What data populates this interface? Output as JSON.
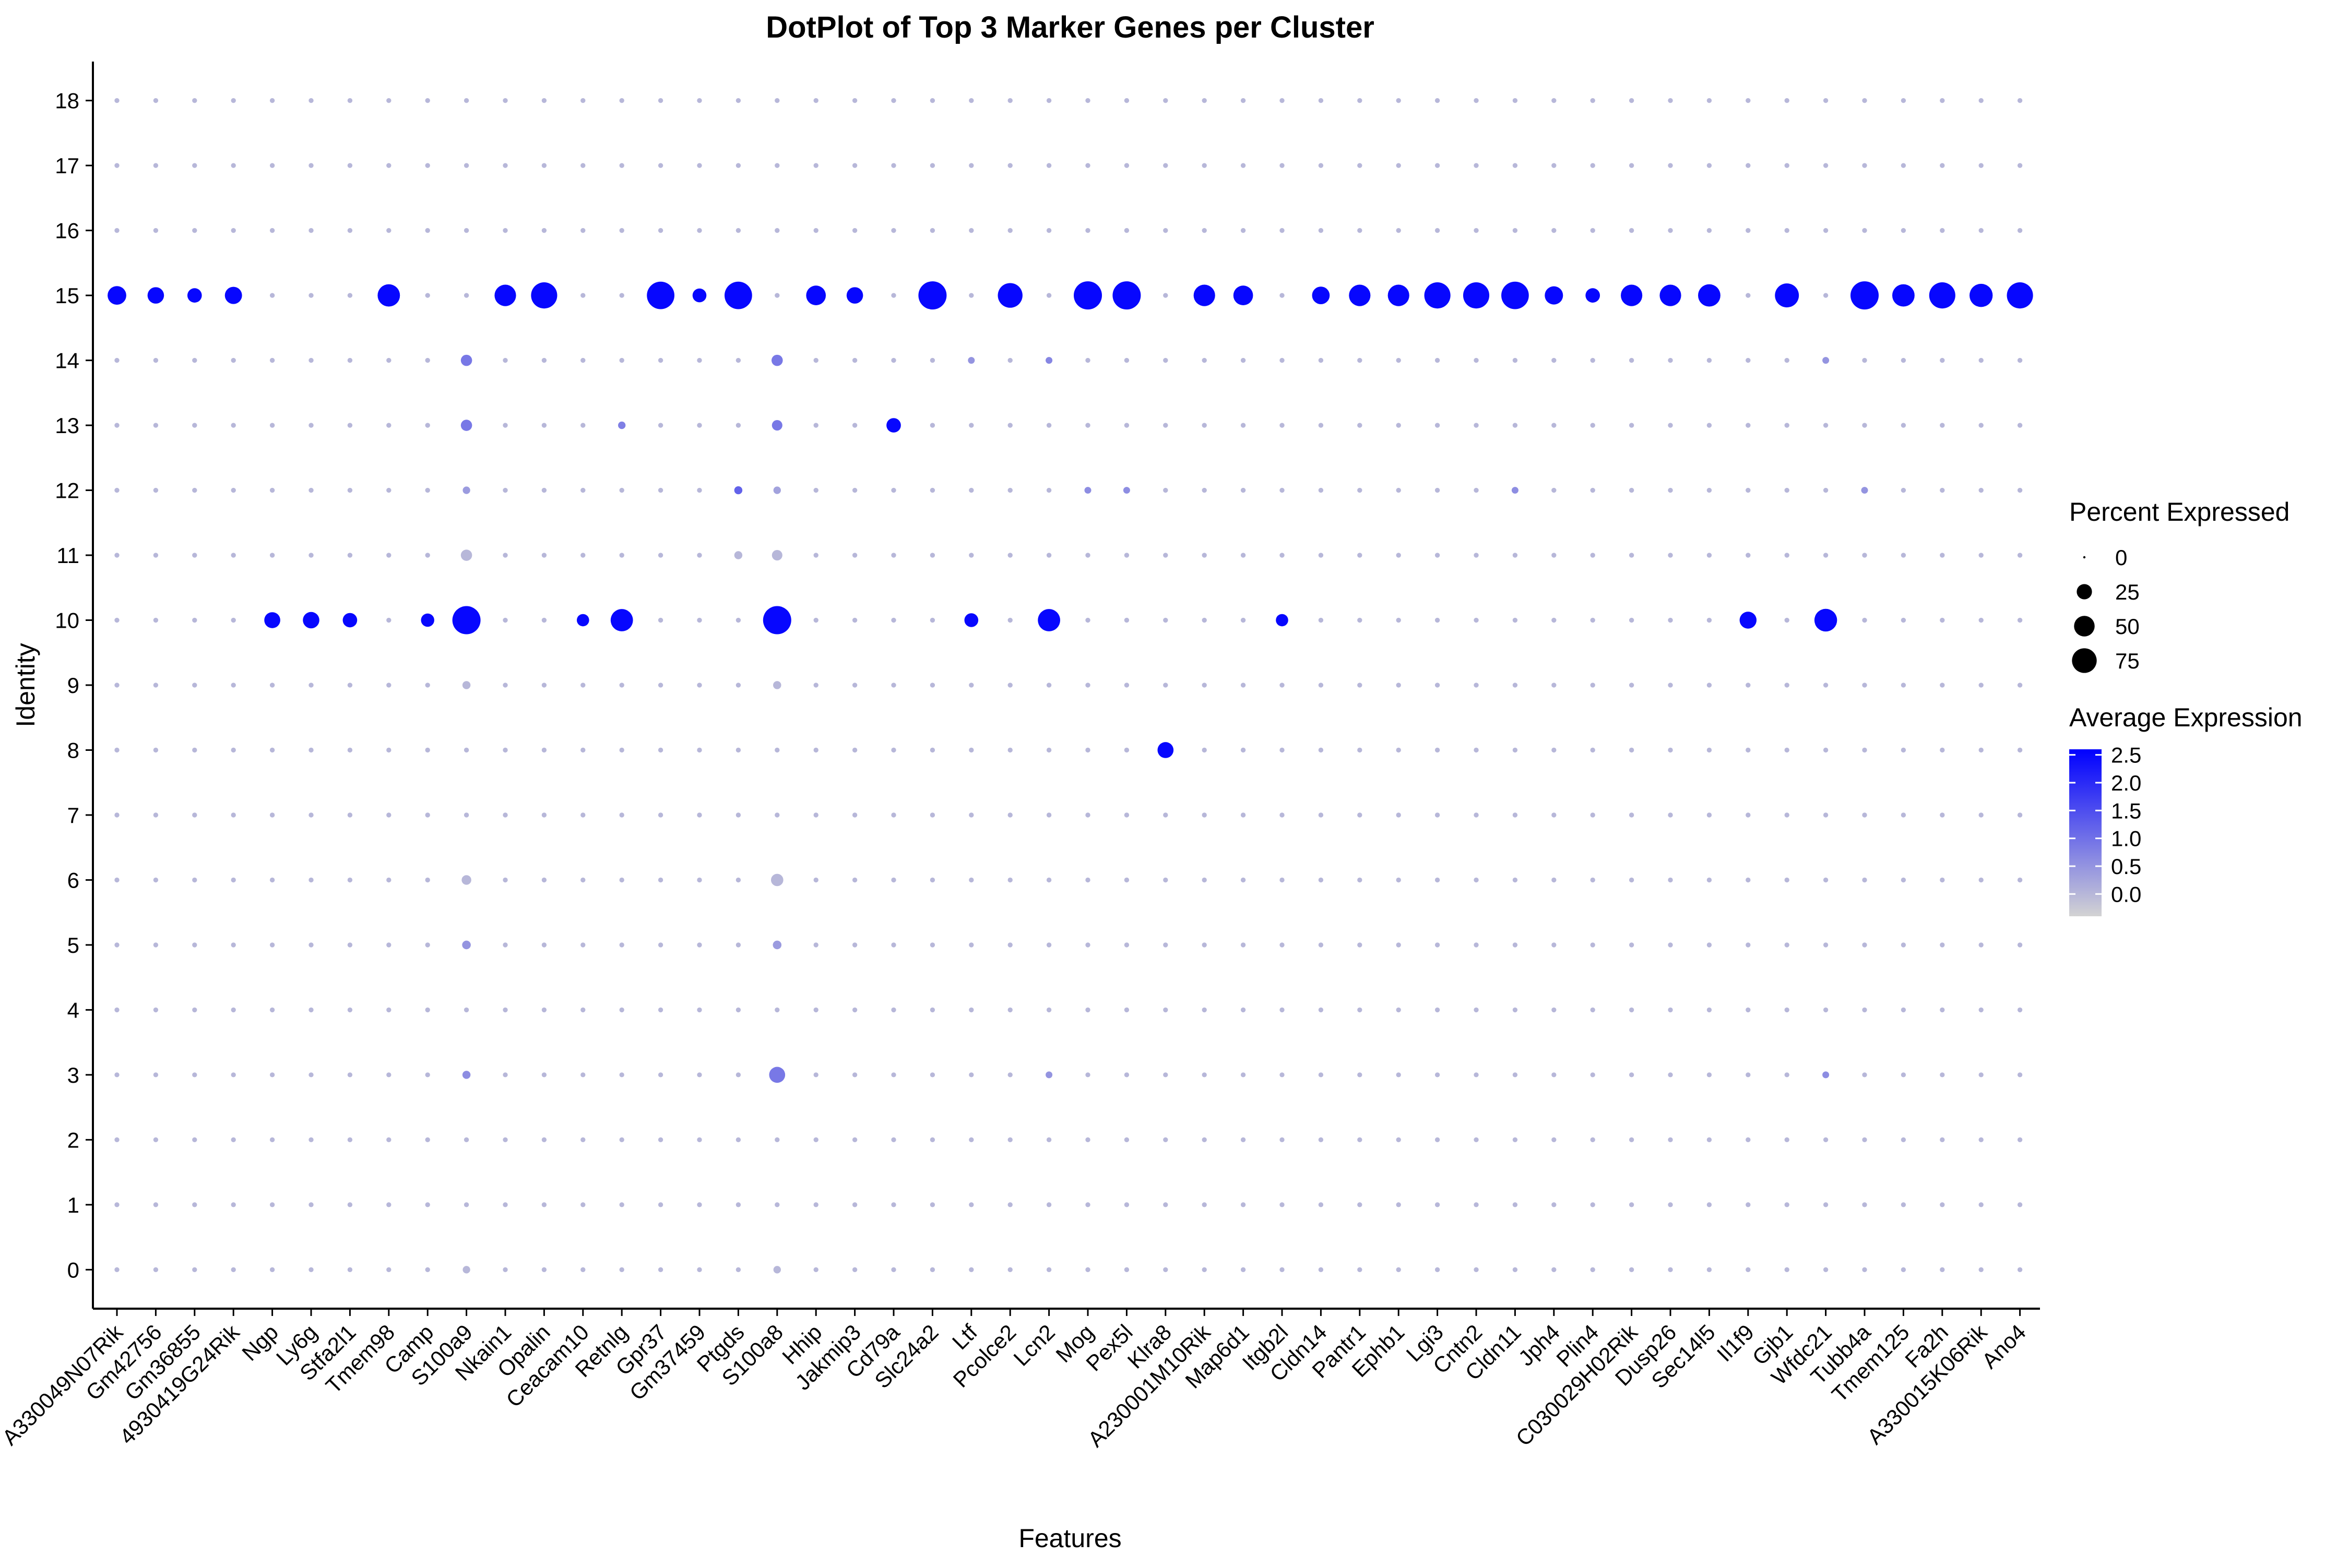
{
  "chart_data": {
    "type": "scatter",
    "title": "DotPlot of Top 3 Marker Genes per Cluster",
    "xlabel": "Features",
    "ylabel": "Identity",
    "features": [
      "A330049N07Rik",
      "Gm42756",
      "Gm36855",
      "4930419G24Rik",
      "Ngp",
      "Ly6g",
      "Stfa2l1",
      "Tmem98",
      "Camp",
      "S100a9",
      "Nkain1",
      "Opalin",
      "Ceacam10",
      "Retnlg",
      "Gpr37",
      "Gm37459",
      "Ptgds",
      "S100a8",
      "Hhip",
      "Jakmip3",
      "Cd79a",
      "Slc24a2",
      "Ltf",
      "Pcolce2",
      "Lcn2",
      "Mog",
      "Pex5l",
      "Klra8",
      "A230001M10Rik",
      "Map6d1",
      "Itgb2l",
      "Cldn14",
      "Pantr1",
      "Ephb1",
      "Lgi3",
      "Cntn2",
      "Cldn11",
      "Jph4",
      "Plin4",
      "C030029H02Rik",
      "Dusp26",
      "Sec14l5",
      "Il1f9",
      "Gjb1",
      "Wfdc21",
      "Tubb4a",
      "Tmem125",
      "Fa2h",
      "A330015K06Rik",
      "Ano4"
    ],
    "identities": [
      "0",
      "1",
      "2",
      "3",
      "4",
      "5",
      "6",
      "7",
      "8",
      "9",
      "10",
      "11",
      "12",
      "13",
      "14",
      "15",
      "16",
      "17",
      "18"
    ],
    "ylim": [
      -0.6,
      18.6
    ],
    "grid": false,
    "default_point": {
      "pct": 1,
      "avg": 0.0
    },
    "points": [
      {
        "feature": "A330049N07Rik",
        "identity": "15",
        "pct": 40,
        "avg": 2.5
      },
      {
        "feature": "Gm42756",
        "identity": "15",
        "pct": 30,
        "avg": 2.5
      },
      {
        "feature": "Gm36855",
        "identity": "15",
        "pct": 22,
        "avg": 2.5
      },
      {
        "feature": "4930419G24Rik",
        "identity": "15",
        "pct": 33,
        "avg": 2.5
      },
      {
        "feature": "Tmem98",
        "identity": "15",
        "pct": 60,
        "avg": 2.5
      },
      {
        "feature": "Nkain1",
        "identity": "15",
        "pct": 55,
        "avg": 2.5
      },
      {
        "feature": "Opalin",
        "identity": "15",
        "pct": 85,
        "avg": 2.5
      },
      {
        "feature": "Gpr37",
        "identity": "15",
        "pct": 95,
        "avg": 2.5
      },
      {
        "feature": "Gm37459",
        "identity": "15",
        "pct": 20,
        "avg": 2.5
      },
      {
        "feature": "Ptgds",
        "identity": "15",
        "pct": 95,
        "avg": 2.5
      },
      {
        "feature": "Hhip",
        "identity": "15",
        "pct": 45,
        "avg": 2.5
      },
      {
        "feature": "Jakmip3",
        "identity": "15",
        "pct": 30,
        "avg": 2.5
      },
      {
        "feature": "Slc24a2",
        "identity": "15",
        "pct": 100,
        "avg": 2.5
      },
      {
        "feature": "Pcolce2",
        "identity": "15",
        "pct": 75,
        "avg": 2.5
      },
      {
        "feature": "Mog",
        "identity": "15",
        "pct": 100,
        "avg": 2.5
      },
      {
        "feature": "Pex5l",
        "identity": "15",
        "pct": 100,
        "avg": 2.5
      },
      {
        "feature": "A230001M10Rik",
        "identity": "15",
        "pct": 55,
        "avg": 2.5
      },
      {
        "feature": "Map6d1",
        "identity": "15",
        "pct": 45,
        "avg": 2.5
      },
      {
        "feature": "Cldn14",
        "identity": "15",
        "pct": 35,
        "avg": 2.5
      },
      {
        "feature": "Pantr1",
        "identity": "15",
        "pct": 55,
        "avg": 2.5
      },
      {
        "feature": "Ephb1",
        "identity": "15",
        "pct": 55,
        "avg": 2.5
      },
      {
        "feature": "Lgi3",
        "identity": "15",
        "pct": 85,
        "avg": 2.5
      },
      {
        "feature": "Cntn2",
        "identity": "15",
        "pct": 85,
        "avg": 2.5
      },
      {
        "feature": "Cldn11",
        "identity": "15",
        "pct": 95,
        "avg": 2.5
      },
      {
        "feature": "Jph4",
        "identity": "15",
        "pct": 38,
        "avg": 2.5
      },
      {
        "feature": "Plin4",
        "identity": "15",
        "pct": 22,
        "avg": 2.5
      },
      {
        "feature": "C030029H02Rik",
        "identity": "15",
        "pct": 55,
        "avg": 2.5
      },
      {
        "feature": "Dusp26",
        "identity": "15",
        "pct": 55,
        "avg": 2.5
      },
      {
        "feature": "Sec14l5",
        "identity": "15",
        "pct": 60,
        "avg": 2.5
      },
      {
        "feature": "Gjb1",
        "identity": "15",
        "pct": 70,
        "avg": 2.5
      },
      {
        "feature": "Tubb4a",
        "identity": "15",
        "pct": 100,
        "avg": 2.5
      },
      {
        "feature": "Tmem125",
        "identity": "15",
        "pct": 60,
        "avg": 2.5
      },
      {
        "feature": "Fa2h",
        "identity": "15",
        "pct": 85,
        "avg": 2.5
      },
      {
        "feature": "A330015K06Rik",
        "identity": "15",
        "pct": 65,
        "avg": 2.5
      },
      {
        "feature": "Ano4",
        "identity": "15",
        "pct": 85,
        "avg": 2.5
      },
      {
        "feature": "Ngp",
        "identity": "10",
        "pct": 28,
        "avg": 2.5
      },
      {
        "feature": "Ly6g",
        "identity": "10",
        "pct": 30,
        "avg": 2.5
      },
      {
        "feature": "Stfa2l1",
        "identity": "10",
        "pct": 22,
        "avg": 2.5
      },
      {
        "feature": "Camp",
        "identity": "10",
        "pct": 18,
        "avg": 2.5
      },
      {
        "feature": "S100a9",
        "identity": "10",
        "pct": 100,
        "avg": 2.5
      },
      {
        "feature": "Ceacam10",
        "identity": "10",
        "pct": 15,
        "avg": 2.5
      },
      {
        "feature": "Retnlg",
        "identity": "10",
        "pct": 60,
        "avg": 2.5
      },
      {
        "feature": "S100a8",
        "identity": "10",
        "pct": 100,
        "avg": 2.5
      },
      {
        "feature": "Ltf",
        "identity": "10",
        "pct": 20,
        "avg": 2.5
      },
      {
        "feature": "Lcn2",
        "identity": "10",
        "pct": 60,
        "avg": 2.5
      },
      {
        "feature": "Itgb2l",
        "identity": "10",
        "pct": 15,
        "avg": 2.5
      },
      {
        "feature": "Il1f9",
        "identity": "10",
        "pct": 32,
        "avg": 2.5
      },
      {
        "feature": "Wfdc21",
        "identity": "10",
        "pct": 62,
        "avg": 2.5
      },
      {
        "feature": "Cd79a",
        "identity": "13",
        "pct": 22,
        "avg": 2.5
      },
      {
        "feature": "Klra8",
        "identity": "8",
        "pct": 28,
        "avg": 2.5
      },
      {
        "feature": "S100a9",
        "identity": "14",
        "pct": 12,
        "avg": 0.9
      },
      {
        "feature": "S100a9",
        "identity": "13",
        "pct": 12,
        "avg": 0.9
      },
      {
        "feature": "S100a9",
        "identity": "12",
        "pct": 4,
        "avg": 0.4
      },
      {
        "feature": "S100a9",
        "identity": "11",
        "pct": 12,
        "avg": 0.0
      },
      {
        "feature": "S100a9",
        "identity": "9",
        "pct": 5,
        "avg": 0.0
      },
      {
        "feature": "S100a9",
        "identity": "6",
        "pct": 8,
        "avg": 0.0
      },
      {
        "feature": "S100a9",
        "identity": "5",
        "pct": 6,
        "avg": 0.5
      },
      {
        "feature": "S100a9",
        "identity": "3",
        "pct": 5,
        "avg": 0.6
      },
      {
        "feature": "S100a9",
        "identity": "0",
        "pct": 4,
        "avg": 0.0
      },
      {
        "feature": "S100a8",
        "identity": "14",
        "pct": 12,
        "avg": 0.9
      },
      {
        "feature": "S100a8",
        "identity": "13",
        "pct": 10,
        "avg": 0.9
      },
      {
        "feature": "S100a8",
        "identity": "12",
        "pct": 4,
        "avg": 0.3
      },
      {
        "feature": "S100a8",
        "identity": "11",
        "pct": 10,
        "avg": 0.0
      },
      {
        "feature": "S100a8",
        "identity": "9",
        "pct": 5,
        "avg": 0.0
      },
      {
        "feature": "S100a8",
        "identity": "6",
        "pct": 15,
        "avg": 0.0
      },
      {
        "feature": "S100a8",
        "identity": "5",
        "pct": 6,
        "avg": 0.4
      },
      {
        "feature": "S100a8",
        "identity": "3",
        "pct": 28,
        "avg": 0.9
      },
      {
        "feature": "S100a8",
        "identity": "0",
        "pct": 4,
        "avg": 0.0
      },
      {
        "feature": "Retnlg",
        "identity": "13",
        "pct": 4,
        "avg": 0.8
      },
      {
        "feature": "Ptgds",
        "identity": "12",
        "pct": 5,
        "avg": 1.2
      },
      {
        "feature": "Ptgds",
        "identity": "11",
        "pct": 5,
        "avg": 0.0
      },
      {
        "feature": "Ltf",
        "identity": "14",
        "pct": 3,
        "avg": 0.5
      },
      {
        "feature": "Lcn2",
        "identity": "14",
        "pct": 3,
        "avg": 0.7
      },
      {
        "feature": "Lcn2",
        "identity": "3",
        "pct": 3,
        "avg": 0.5
      },
      {
        "feature": "Mog",
        "identity": "12",
        "pct": 3,
        "avg": 0.6
      },
      {
        "feature": "Pex5l",
        "identity": "12",
        "pct": 3,
        "avg": 0.6
      },
      {
        "feature": "Cldn11",
        "identity": "12",
        "pct": 3,
        "avg": 0.6
      },
      {
        "feature": "Wfdc21",
        "identity": "14",
        "pct": 3,
        "avg": 0.5
      },
      {
        "feature": "Wfdc21",
        "identity": "3",
        "pct": 3,
        "avg": 0.6
      },
      {
        "feature": "Tubb4a",
        "identity": "12",
        "pct": 3,
        "avg": 0.5
      }
    ],
    "legend_size": {
      "title": "Percent Expressed",
      "breaks": [
        0,
        25,
        50,
        75
      ],
      "position": "right"
    },
    "legend_color": {
      "title": "Average Expression",
      "breaks": [
        2.5,
        2.0,
        1.5,
        1.0,
        0.5,
        0.0
      ],
      "labels": [
        "2.5",
        "2.0",
        "1.5",
        "1.0",
        "0.5",
        "0.0"
      ],
      "low_color": "#d3d3d3",
      "high_color": "#0000ff",
      "range": [
        -0.4,
        2.6
      ],
      "position": "right"
    }
  }
}
